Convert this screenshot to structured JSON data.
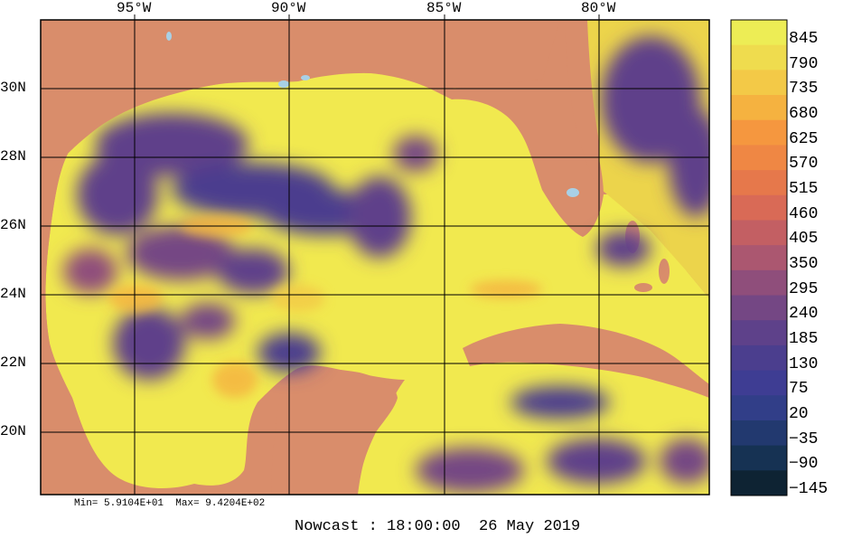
{
  "map": {
    "longitude_labels": [
      "95°W",
      "90°W",
      "85°W",
      "80°W"
    ],
    "latitude_labels": [
      "30N",
      "28N",
      "26N",
      "24N",
      "22N",
      "20N"
    ],
    "min_max_text": "Min= 5.9104E+01  Max= 9.4204E+02",
    "nowcast_text": "Nowcast : 18:00:00  26 May 2019",
    "land_color": "#d98d6b",
    "lake_color": "#a8d0e6"
  },
  "colorbar": {
    "labels": [
      "845",
      "790",
      "735",
      "680",
      "625",
      "570",
      "515",
      "460",
      "405",
      "350",
      "295",
      "240",
      "185",
      "130",
      "75",
      "20",
      "−35",
      "−90",
      "−145"
    ],
    "colors": [
      "#eded55",
      "#efdc4e",
      "#f3c947",
      "#f5b240",
      "#f5973f",
      "#ef8744",
      "#e6784b",
      "#d96a56",
      "#c35f63",
      "#ab5770",
      "#8f4e7b",
      "#744784",
      "#5e418a",
      "#4b3e8e",
      "#3e3d93",
      "#313e88",
      "#22396f",
      "#163253",
      "#0e2333"
    ]
  }
}
